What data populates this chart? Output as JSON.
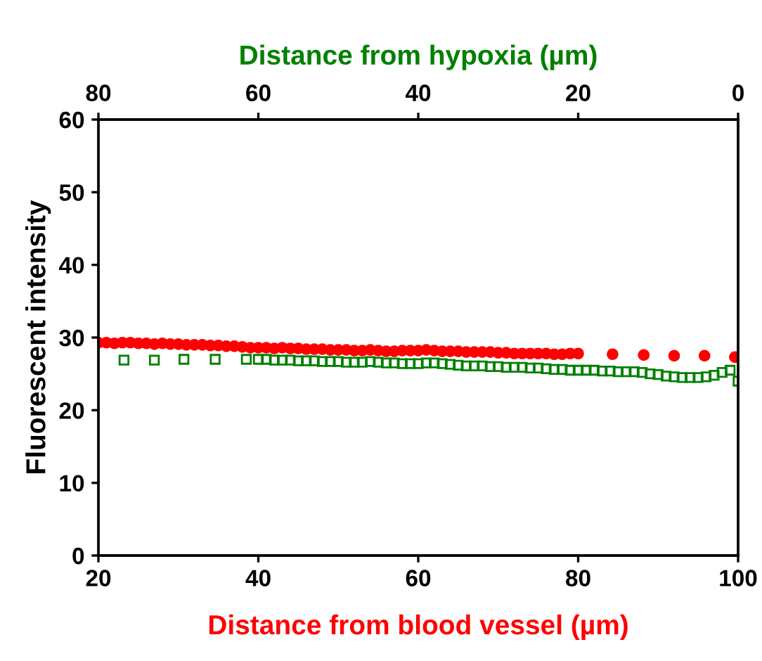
{
  "chart_data": {
    "type": "scatter",
    "xlabel": "Distance from blood vessel (µm)",
    "ylabel": "Fluorescent intensity",
    "x2label": "Distance from hypoxia (µm)",
    "xlim": [
      20,
      100
    ],
    "xticks": [
      20,
      40,
      60,
      80,
      100
    ],
    "x2lim": [
      80,
      0
    ],
    "x2ticks": [
      80,
      60,
      40,
      20,
      0
    ],
    "ylim": [
      0,
      60
    ],
    "yticks": [
      0,
      10,
      20,
      30,
      40,
      50,
      60
    ],
    "grid": false,
    "legend": false,
    "series": [
      {
        "color": "#ff0000",
        "marker": "circle",
        "x": [
          20,
          21,
          22,
          23,
          24,
          25,
          26,
          27,
          28,
          29,
          30,
          31,
          32,
          33,
          34,
          35,
          36,
          37,
          38,
          39,
          40,
          41,
          42,
          43,
          44,
          45,
          46,
          47,
          48,
          49,
          50,
          51,
          52,
          53,
          54,
          55,
          56,
          57,
          58,
          59,
          60,
          61,
          62,
          63,
          64,
          65,
          66,
          67,
          68,
          69,
          70,
          71,
          72,
          73,
          74,
          75,
          76,
          77,
          78,
          79,
          80,
          84.3,
          88.2,
          92.0,
          95.8,
          99.6
        ],
        "values": [
          29.3,
          29.3,
          29.2,
          29.3,
          29.3,
          29.2,
          29.2,
          29.1,
          29.2,
          29.1,
          29.1,
          29.0,
          29.0,
          29.0,
          28.9,
          28.9,
          28.8,
          28.8,
          28.7,
          28.6,
          28.6,
          28.6,
          28.5,
          28.6,
          28.5,
          28.5,
          28.4,
          28.4,
          28.4,
          28.3,
          28.3,
          28.3,
          28.2,
          28.2,
          28.3,
          28.2,
          28.1,
          28.1,
          28.2,
          28.2,
          28.2,
          28.3,
          28.2,
          28.1,
          28.1,
          28.1,
          28.0,
          28.0,
          28.0,
          28.0,
          27.9,
          27.9,
          27.8,
          27.8,
          27.8,
          27.8,
          27.8,
          27.7,
          27.7,
          27.8,
          27.8,
          27.7,
          27.6,
          27.5,
          27.5,
          27.3
        ]
      },
      {
        "color": "#008000",
        "marker": "square",
        "x": [
          23.2,
          27.0,
          30.7,
          34.6,
          38.5,
          40,
          41,
          42,
          43,
          44,
          45,
          46,
          47,
          48,
          49,
          50,
          51,
          52,
          53,
          54,
          55,
          56,
          57,
          58,
          59,
          60,
          61,
          62,
          63,
          64,
          65,
          66,
          67,
          68,
          69,
          70,
          71,
          72,
          73,
          74,
          75,
          76,
          77,
          78,
          79,
          80,
          81,
          82,
          83,
          84,
          85,
          86,
          87,
          88,
          89,
          90,
          91,
          92,
          93,
          94,
          95,
          96,
          97,
          98,
          99,
          100
        ],
        "values": [
          26.9,
          26.9,
          27.0,
          27.0,
          27.0,
          27.0,
          27.0,
          26.9,
          26.9,
          26.9,
          26.8,
          26.8,
          26.8,
          26.7,
          26.7,
          26.7,
          26.6,
          26.6,
          26.6,
          26.7,
          26.6,
          26.5,
          26.5,
          26.4,
          26.4,
          26.4,
          26.5,
          26.5,
          26.4,
          26.3,
          26.2,
          26.1,
          26.1,
          26.1,
          26.0,
          26.0,
          25.9,
          25.9,
          25.9,
          25.8,
          25.8,
          25.7,
          25.6,
          25.6,
          25.5,
          25.5,
          25.5,
          25.5,
          25.4,
          25.4,
          25.3,
          25.3,
          25.3,
          25.2,
          25.0,
          24.9,
          24.7,
          24.6,
          24.5,
          24.5,
          24.5,
          24.6,
          24.8,
          25.2,
          25.5,
          24.0
        ]
      }
    ]
  }
}
